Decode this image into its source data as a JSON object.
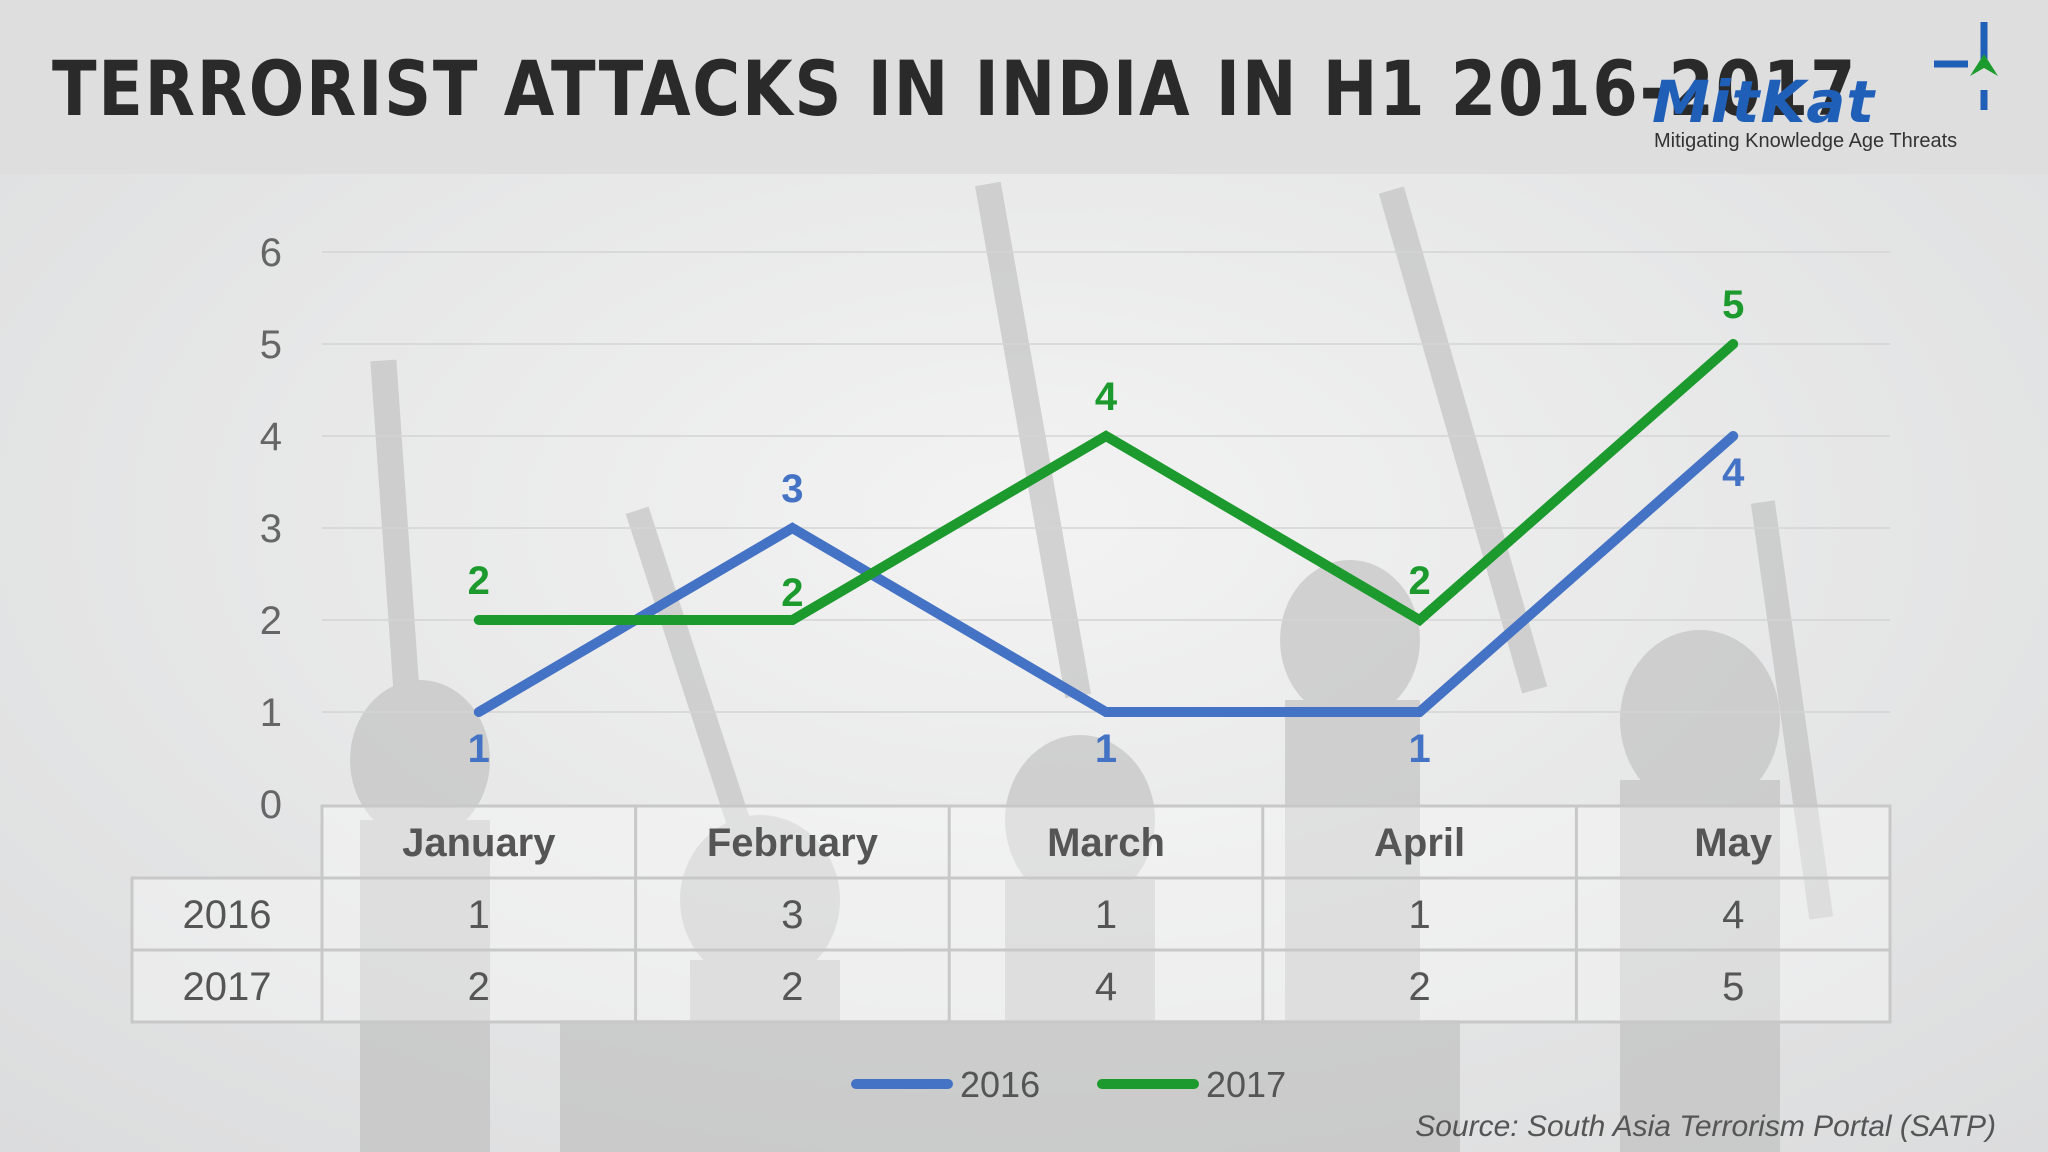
{
  "header": {
    "title": "TERRORIST ATTACKS IN INDIA IN H1 2016-2017",
    "logo_word": "MitKat",
    "logo_tagline": "Mitigating Knowledge Age Threats"
  },
  "chart_data": {
    "type": "line",
    "title": "TERRORIST ATTACKS IN INDIA IN H1 2016-2017",
    "categories": [
      "January",
      "February",
      "March",
      "April",
      "May"
    ],
    "series": [
      {
        "name": "2016",
        "values": [
          1,
          3,
          1,
          1,
          4
        ],
        "color": "#4472c4"
      },
      {
        "name": "2017",
        "values": [
          2,
          2,
          4,
          2,
          5
        ],
        "color": "#1c9a2e"
      }
    ],
    "y_ticks": [
      0,
      1,
      2,
      3,
      4,
      5,
      6
    ],
    "ylim": [
      0,
      6
    ],
    "grid": true,
    "data_labels": true,
    "data_table": true,
    "legend_position": "bottom"
  },
  "source": "Source: South Asia Terrorism Portal (SATP)"
}
